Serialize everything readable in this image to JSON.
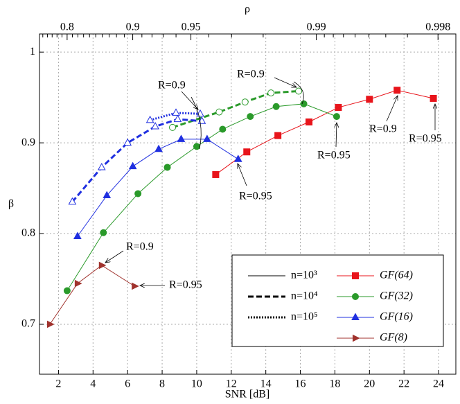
{
  "chart_data": {
    "type": "line",
    "xlabel": "SNR [dB]",
    "ylabel": "β",
    "x2label": "ρ",
    "xlim": [
      0.9,
      25
    ],
    "xticks": [
      2,
      4,
      6,
      8,
      10,
      12,
      14,
      16,
      18,
      20,
      22,
      24
    ],
    "ylim": [
      0.645,
      1.02
    ],
    "yticks": [
      0.7,
      0.8,
      0.9,
      1
    ],
    "x2ticks": [
      0.8,
      0.9,
      0.95,
      0.99,
      0.998
    ],
    "x2minor": [
      0.75,
      0.76,
      0.77,
      0.78,
      0.79,
      0.81,
      0.82,
      0.83,
      0.84,
      0.85,
      0.86,
      0.87,
      0.88,
      0.89,
      0.91,
      0.92,
      0.93,
      0.94,
      0.96,
      0.97,
      0.98,
      0.991,
      0.992,
      0.993,
      0.994,
      0.995,
      0.996,
      0.997
    ],
    "grid": true,
    "line_styles": [
      {
        "label": "n=10³",
        "style": "solid"
      },
      {
        "label": "n=10⁴",
        "style": "dashed"
      },
      {
        "label": "n=10⁵",
        "style": "dotted"
      }
    ],
    "series": [
      {
        "name": "GF(64)",
        "color": "#e8141b",
        "marker": "square",
        "curves": [
          {
            "style": "solid",
            "filled": true,
            "x": [
              11.1,
              12.9,
              14.7,
              16.5,
              18.2,
              20.0,
              21.6,
              23.7
            ],
            "values": [
              0.865,
              0.89,
              0.908,
              0.923,
              0.939,
              0.948,
              0.958,
              0.949
            ]
          }
        ]
      },
      {
        "name": "GF(32)",
        "color": "#2a9a2a",
        "marker": "circle",
        "curves": [
          {
            "style": "solid",
            "filled": true,
            "x": [
              2.5,
              4.6,
              6.6,
              8.3,
              10.0,
              11.5,
              13.1,
              14.6,
              16.2,
              18.1
            ],
            "values": [
              0.737,
              0.801,
              0.844,
              0.873,
              0.896,
              0.915,
              0.929,
              0.94,
              0.943,
              0.929
            ]
          },
          {
            "style": "dashed",
            "filled": false,
            "x": [
              8.6,
              11.3,
              12.8,
              14.3,
              15.9
            ],
            "values": [
              0.917,
              0.934,
              0.945,
              0.955,
              0.957
            ]
          }
        ]
      },
      {
        "name": "GF(16)",
        "color": "#1f2fe0",
        "marker": "triangle",
        "curves": [
          {
            "style": "solid",
            "filled": true,
            "x": [
              3.1,
              4.8,
              6.3,
              7.8,
              9.1,
              10.6,
              12.4
            ],
            "values": [
              0.797,
              0.842,
              0.874,
              0.893,
              0.904,
              0.904,
              0.882
            ]
          },
          {
            "style": "dashed",
            "filled": false,
            "x": [
              2.8,
              4.5,
              6.0,
              7.6,
              8.9,
              10.3
            ],
            "values": [
              0.835,
              0.873,
              0.9,
              0.918,
              0.926,
              0.924
            ]
          },
          {
            "style": "dotted",
            "filled": false,
            "x": [
              7.3,
              8.8,
              10.2
            ],
            "values": [
              0.925,
              0.933,
              0.932
            ]
          }
        ]
      },
      {
        "name": "GF(8)",
        "color": "#a0322d",
        "marker": "right-triangle",
        "curves": [
          {
            "style": "solid",
            "filled": true,
            "x": [
              1.5,
              3.1,
              4.5,
              6.4
            ],
            "values": [
              0.7,
              0.745,
              0.765,
              0.742
            ]
          }
        ]
      }
    ],
    "annotations": [
      "R=0.9",
      "R=0.9",
      "R=0.95",
      "R=0.9",
      "R=0.95",
      "R=0.95",
      "R=0.9",
      "R=0.95"
    ]
  }
}
